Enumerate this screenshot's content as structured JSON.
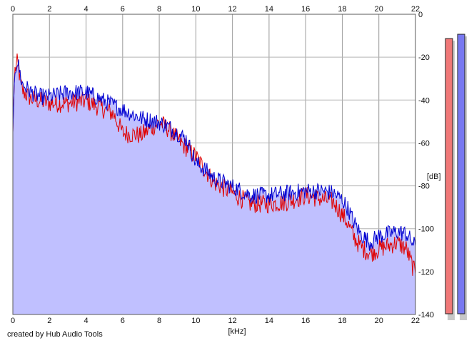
{
  "credit": "created by Hub Audio Tools",
  "chart_data": {
    "type": "area",
    "xlabel": "[kHz]",
    "ylabel": "[dB]",
    "xlim": [
      0,
      22
    ],
    "ylim": [
      -140,
      0
    ],
    "x_ticks": [
      0,
      2,
      4,
      6,
      8,
      10,
      12,
      14,
      16,
      18,
      20,
      22
    ],
    "y_ticks": [
      0,
      -20,
      -40,
      -60,
      -80,
      -100,
      -120,
      -140
    ],
    "grid": true,
    "x": [
      0,
      0.1,
      0.25,
      0.5,
      1,
      1.5,
      2,
      3,
      4,
      5,
      5.5,
      6,
      7,
      8,
      8.5,
      9,
      9.5,
      10,
      10.5,
      11,
      12,
      13,
      14,
      15,
      16,
      17,
      17.5,
      18,
      18.3,
      18.6,
      19,
      19.5,
      20,
      21,
      21.5,
      22
    ],
    "series": [
      {
        "color": "#e00000",
        "values": [
          -55,
          -26,
          -22,
          -35,
          -39,
          -40,
          -41,
          -41,
          -40,
          -44,
          -46,
          -55,
          -56,
          -50,
          -53,
          -58,
          -62,
          -66,
          -72,
          -78,
          -83,
          -88,
          -88,
          -87,
          -84,
          -86,
          -87,
          -93,
          -97,
          -103,
          -108,
          -111,
          -109,
          -106,
          -109,
          -121
        ]
      },
      {
        "color": "#0000d0",
        "values": [
          -55,
          -26,
          -21,
          -32,
          -36,
          -38,
          -38,
          -36,
          -36,
          -40,
          -42,
          -44,
          -48,
          -50,
          -52,
          -55,
          -58,
          -69,
          -72,
          -76,
          -80,
          -84,
          -84,
          -83,
          -82,
          -82,
          -83,
          -86,
          -90,
          -96,
          -102,
          -106,
          -103,
          -101,
          -102,
          -108
        ]
      }
    ],
    "fill_color": "#c0c0ff",
    "level_meters": [
      {
        "color": "#f07878",
        "level_db": -6
      },
      {
        "color": "#7878f0",
        "level_db": -4
      }
    ]
  }
}
